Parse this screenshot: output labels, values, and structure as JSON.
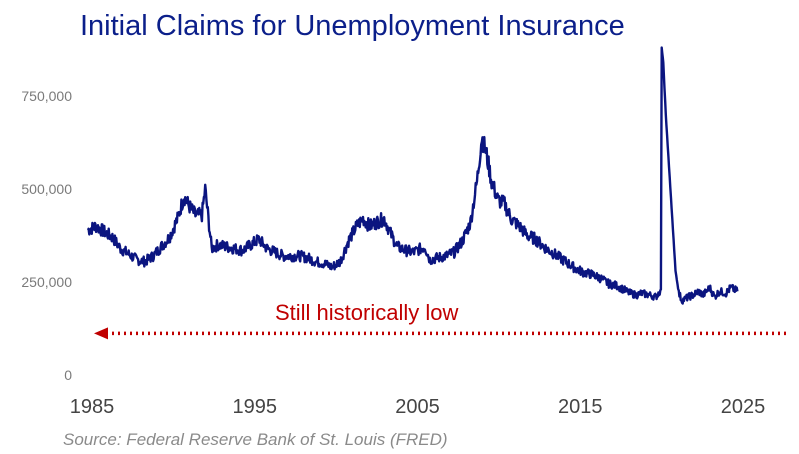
{
  "chart_data": {
    "type": "line",
    "title": "Initial Claims for Unemployment Insurance",
    "source": "Source: Federal Reserve Bank of St. Louis (FRED)",
    "annotation": "Still historically low",
    "xlim": [
      1985,
      2025
    ],
    "ylim": [
      0,
      880000
    ],
    "y_ticks": [
      {
        "value": 0,
        "label": "0"
      },
      {
        "value": 250000,
        "label": "250,000"
      },
      {
        "value": 500000,
        "label": "500,000"
      },
      {
        "value": 750000,
        "label": "750,000"
      }
    ],
    "x_ticks": [
      {
        "value": 1985,
        "label": "1985"
      },
      {
        "value": 1995,
        "label": "1995"
      },
      {
        "value": 2005,
        "label": "2005"
      },
      {
        "value": 2015,
        "label": "2015"
      },
      {
        "value": 2025,
        "label": "2025"
      }
    ],
    "grid": false,
    "reference_line": {
      "y": 120000,
      "style": "dotted",
      "arrow": "left"
    },
    "colors": {
      "series": "#0b1580",
      "annotation": "#c00000",
      "title": "#0b1f8a"
    },
    "series": [
      {
        "x": [
          1985.0,
          1985.5,
          1986.0,
          1986.5,
          1987.0,
          1987.5,
          1988.0,
          1988.5,
          1989.0,
          1989.5,
          1990.0,
          1990.5,
          1990.9,
          1991.2,
          1991.6,
          1992.0,
          1992.2,
          1992.6,
          1993.0,
          1993.5,
          1994.0,
          1994.5,
          1995.0,
          1995.5,
          1996.0,
          1996.5,
          1997.0,
          1997.5,
          1998.0,
          1998.5,
          1999.0,
          1999.5,
          2000.0,
          2000.5,
          2001.0,
          2001.5,
          2001.9,
          2002.3,
          2002.7,
          2003.2,
          2003.6,
          2004.0,
          2004.5,
          2005.0,
          2005.7,
          2006.0,
          2006.5,
          2007.0,
          2007.5,
          2008.0,
          2008.5,
          2008.9,
          2009.2,
          2009.5,
          2009.8,
          2010.2,
          2010.6,
          2011.0,
          2011.5,
          2012.0,
          2012.5,
          2013.0,
          2013.5,
          2014.0,
          2014.5,
          2015.0,
          2015.5,
          2016.0,
          2016.5,
          2017.0,
          2017.5,
          2017.9,
          2018.3,
          2018.7,
          2019.0,
          2019.5,
          2019.9,
          2020.2,
          2020.25,
          2020.35,
          2020.5,
          2020.7,
          2020.9,
          2021.1,
          2021.3,
          2021.5,
          2021.7,
          2021.9,
          2022.2,
          2022.5,
          2022.8,
          2023.2,
          2023.5,
          2023.8,
          2024.2,
          2024.5,
          2024.9
        ],
        "y": [
          390000,
          400000,
          385000,
          370000,
          340000,
          325000,
          310000,
          305000,
          320000,
          345000,
          370000,
          420000,
          480000,
          455000,
          430000,
          430000,
          500000,
          340000,
          350000,
          345000,
          340000,
          335000,
          350000,
          365000,
          340000,
          330000,
          320000,
          320000,
          320000,
          315000,
          305000,
          300000,
          290000,
          305000,
          360000,
          400000,
          420000,
          400000,
          410000,
          420000,
          380000,
          345000,
          335000,
          330000,
          345000,
          310000,
          315000,
          320000,
          330000,
          360000,
          410000,
          520000,
          640000,
          590000,
          520000,
          470000,
          460000,
          420000,
          400000,
          375000,
          365000,
          345000,
          330000,
          315000,
          300000,
          285000,
          275000,
          270000,
          260000,
          245000,
          240000,
          230000,
          220000,
          215000,
          220000,
          215000,
          210000,
          230000,
          880000,
          840000,
          700000,
          560000,
          420000,
          280000,
          220000,
          200000,
          205000,
          210000,
          215000,
          225000,
          215000,
          235000,
          210000,
          225000,
          220000,
          235000,
          225000
        ]
      }
    ]
  }
}
